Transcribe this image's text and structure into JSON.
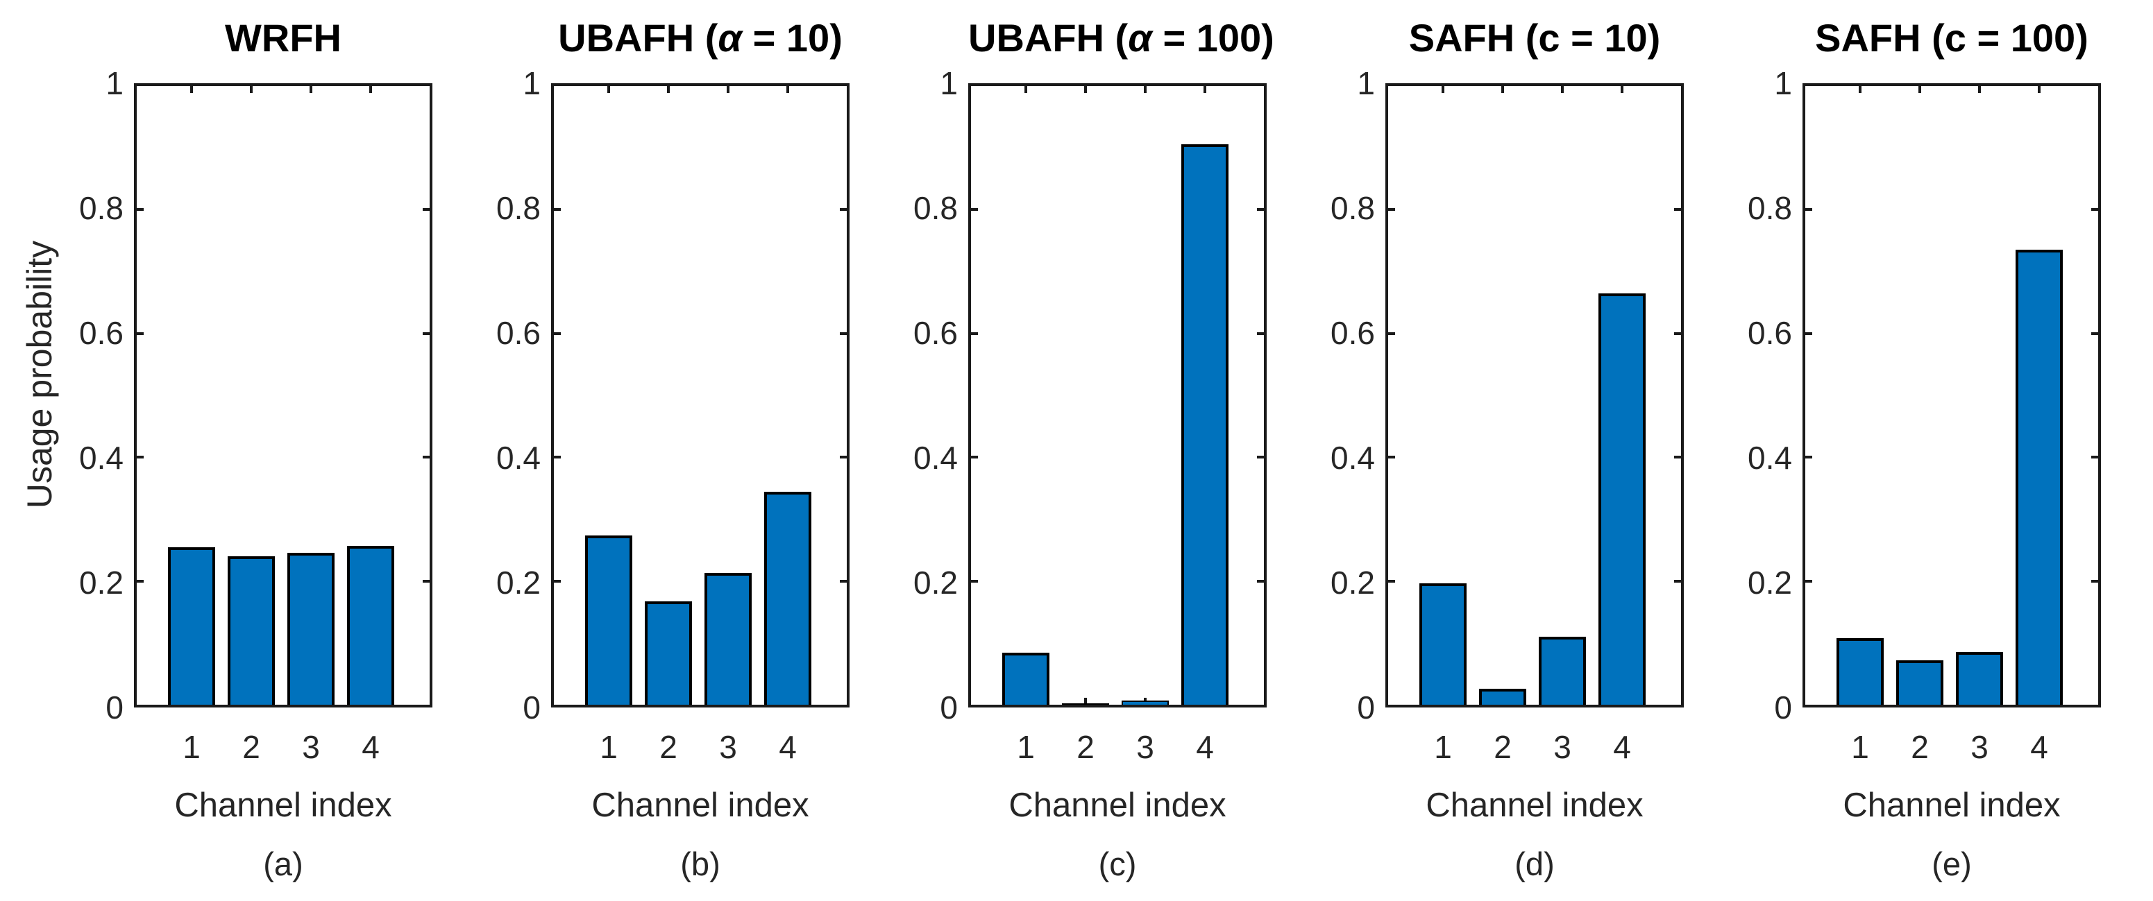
{
  "figure": {
    "ylabel": "Usage probability",
    "xlabel": "Channel index",
    "bar_color": "#0072BD",
    "bar_edge_color": "#000000",
    "axis_color": "#1a1a1a",
    "y_tick_labels": [
      "0",
      "0.2",
      "0.4",
      "0.6",
      "0.8",
      "1"
    ],
    "x_tick_labels": [
      "1",
      "2",
      "3",
      "4"
    ]
  },
  "chart_data": [
    {
      "type": "bar",
      "title": "WRFH",
      "sublabel": "(a)",
      "categories": [
        "1",
        "2",
        "3",
        "4"
      ],
      "values": [
        0.254,
        0.24,
        0.246,
        0.257
      ],
      "xlabel": "Channel index",
      "ylabel": "Usage probability",
      "ylim": [
        0,
        1
      ],
      "grid": false,
      "legend": null
    },
    {
      "type": "bar",
      "title": "UBAFH (α = 10)",
      "sublabel": "(b)",
      "categories": [
        "1",
        "2",
        "3",
        "4"
      ],
      "values": [
        0.273,
        0.167,
        0.213,
        0.344
      ],
      "xlabel": "Channel index",
      "ylabel": "Usage probability",
      "ylim": [
        0,
        1
      ],
      "grid": false,
      "legend": null
    },
    {
      "type": "bar",
      "title": "UBAFH (α = 100)",
      "sublabel": "(c)",
      "categories": [
        "1",
        "2",
        "3",
        "4"
      ],
      "values": [
        0.084,
        0.001,
        0.007,
        0.906
      ],
      "xlabel": "Channel index",
      "ylabel": "Usage probability",
      "ylim": [
        0,
        1
      ],
      "grid": false,
      "legend": null
    },
    {
      "type": "bar",
      "title": "SAFH (c = 10)",
      "sublabel": "(d)",
      "categories": [
        "1",
        "2",
        "3",
        "4"
      ],
      "values": [
        0.196,
        0.026,
        0.11,
        0.665
      ],
      "xlabel": "Channel index",
      "ylabel": "Usage probability",
      "ylim": [
        0,
        1
      ],
      "grid": false,
      "legend": null
    },
    {
      "type": "bar",
      "title": "SAFH (c = 100)",
      "sublabel": "(e)",
      "categories": [
        "1",
        "2",
        "3",
        "4"
      ],
      "values": [
        0.108,
        0.072,
        0.085,
        0.735
      ],
      "xlabel": "Channel index",
      "ylabel": "Usage probability",
      "ylim": [
        0,
        1
      ],
      "grid": false,
      "legend": null
    }
  ]
}
